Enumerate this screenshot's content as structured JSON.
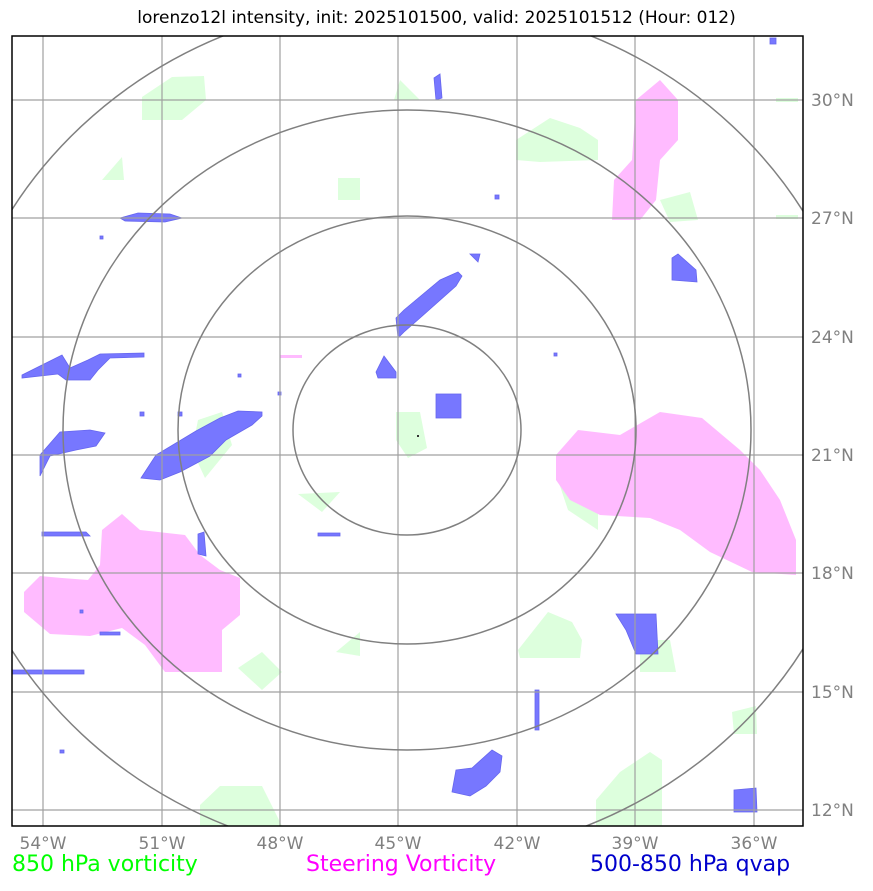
{
  "title": "lorenzo12l intensity, init: 2025101500, valid: 2025101512 (Hour: 012)",
  "lon_ticks": [
    "54°W",
    "51°W",
    "48°W",
    "45°W",
    "42°W",
    "39°W",
    "36°W"
  ],
  "lat_ticks": [
    "30°N",
    "27°N",
    "24°N",
    "21°N",
    "18°N",
    "15°N",
    "12°N"
  ],
  "legend": {
    "left": {
      "label": "850 hPa vorticity",
      "color": "#00ff00"
    },
    "middle": {
      "label": "Steering Vorticity",
      "color": "#ff00ff"
    },
    "right": {
      "label": "500-850 hPa qvap",
      "color": "#0000cc"
    }
  },
  "colors": {
    "vorticity_fill": "#ddffdd",
    "steering_fill": "#ffbbff",
    "qvap_fill": "#7777ff",
    "grid": "#a0a0a0",
    "range_rings": "#808080"
  }
}
